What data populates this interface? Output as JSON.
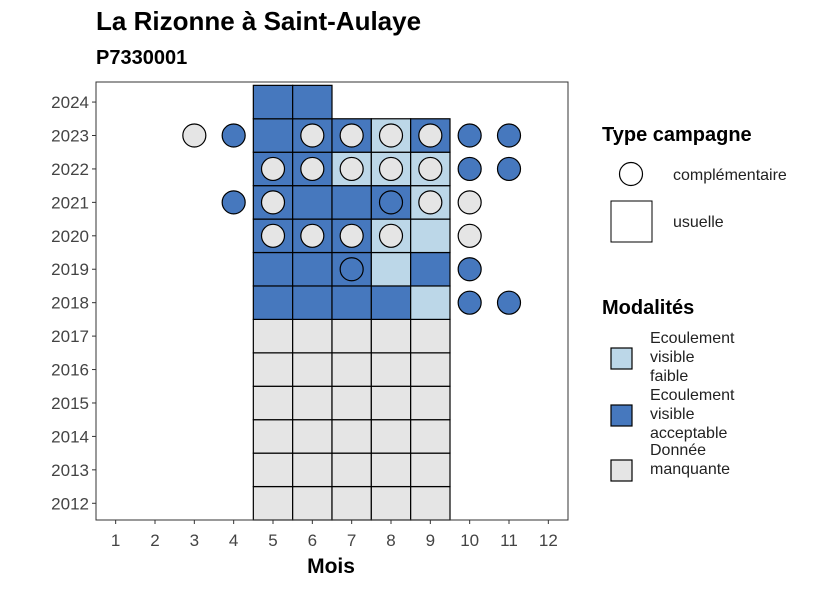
{
  "chart_data": {
    "type": "heatmap",
    "title": "La Rizonne à Saint-Aulaye",
    "subtitle": "P7330001",
    "xlabel": "Mois",
    "ylabel": "",
    "x_ticks": [
      1,
      2,
      3,
      4,
      5,
      6,
      7,
      8,
      9,
      10,
      11,
      12
    ],
    "y_ticks": [
      2012,
      2013,
      2014,
      2015,
      2016,
      2017,
      2018,
      2019,
      2020,
      2021,
      2022,
      2023,
      2024
    ],
    "xlim": [
      0.5,
      12.5
    ],
    "ylim": [
      2011.5,
      2024.6
    ],
    "grid": false,
    "colors": {
      "faible": "#bcd7e8",
      "acceptable": "#4678be",
      "manquante": "#e5e5e5"
    },
    "usuelle": [
      {
        "year": 2012,
        "month": 5,
        "m": "manquante"
      },
      {
        "year": 2012,
        "month": 6,
        "m": "manquante"
      },
      {
        "year": 2012,
        "month": 7,
        "m": "manquante"
      },
      {
        "year": 2012,
        "month": 8,
        "m": "manquante"
      },
      {
        "year": 2012,
        "month": 9,
        "m": "manquante"
      },
      {
        "year": 2013,
        "month": 5,
        "m": "manquante"
      },
      {
        "year": 2013,
        "month": 6,
        "m": "manquante"
      },
      {
        "year": 2013,
        "month": 7,
        "m": "manquante"
      },
      {
        "year": 2013,
        "month": 8,
        "m": "manquante"
      },
      {
        "year": 2013,
        "month": 9,
        "m": "manquante"
      },
      {
        "year": 2014,
        "month": 5,
        "m": "manquante"
      },
      {
        "year": 2014,
        "month": 6,
        "m": "manquante"
      },
      {
        "year": 2014,
        "month": 7,
        "m": "manquante"
      },
      {
        "year": 2014,
        "month": 8,
        "m": "manquante"
      },
      {
        "year": 2014,
        "month": 9,
        "m": "manquante"
      },
      {
        "year": 2015,
        "month": 5,
        "m": "manquante"
      },
      {
        "year": 2015,
        "month": 6,
        "m": "manquante"
      },
      {
        "year": 2015,
        "month": 7,
        "m": "manquante"
      },
      {
        "year": 2015,
        "month": 8,
        "m": "manquante"
      },
      {
        "year": 2015,
        "month": 9,
        "m": "manquante"
      },
      {
        "year": 2016,
        "month": 5,
        "m": "manquante"
      },
      {
        "year": 2016,
        "month": 6,
        "m": "manquante"
      },
      {
        "year": 2016,
        "month": 7,
        "m": "manquante"
      },
      {
        "year": 2016,
        "month": 8,
        "m": "manquante"
      },
      {
        "year": 2016,
        "month": 9,
        "m": "manquante"
      },
      {
        "year": 2017,
        "month": 5,
        "m": "manquante"
      },
      {
        "year": 2017,
        "month": 6,
        "m": "manquante"
      },
      {
        "year": 2017,
        "month": 7,
        "m": "manquante"
      },
      {
        "year": 2017,
        "month": 8,
        "m": "manquante"
      },
      {
        "year": 2017,
        "month": 9,
        "m": "manquante"
      },
      {
        "year": 2018,
        "month": 5,
        "m": "acceptable"
      },
      {
        "year": 2018,
        "month": 6,
        "m": "acceptable"
      },
      {
        "year": 2018,
        "month": 7,
        "m": "acceptable"
      },
      {
        "year": 2018,
        "month": 8,
        "m": "acceptable"
      },
      {
        "year": 2018,
        "month": 9,
        "m": "faible"
      },
      {
        "year": 2019,
        "month": 5,
        "m": "acceptable"
      },
      {
        "year": 2019,
        "month": 6,
        "m": "acceptable"
      },
      {
        "year": 2019,
        "month": 7,
        "m": "acceptable"
      },
      {
        "year": 2019,
        "month": 8,
        "m": "faible"
      },
      {
        "year": 2019,
        "month": 9,
        "m": "acceptable"
      },
      {
        "year": 2020,
        "month": 5,
        "m": "acceptable"
      },
      {
        "year": 2020,
        "month": 6,
        "m": "acceptable"
      },
      {
        "year": 2020,
        "month": 7,
        "m": "acceptable"
      },
      {
        "year": 2020,
        "month": 8,
        "m": "faible"
      },
      {
        "year": 2020,
        "month": 9,
        "m": "faible"
      },
      {
        "year": 2021,
        "month": 5,
        "m": "acceptable"
      },
      {
        "year": 2021,
        "month": 6,
        "m": "acceptable"
      },
      {
        "year": 2021,
        "month": 7,
        "m": "acceptable"
      },
      {
        "year": 2021,
        "month": 8,
        "m": "acceptable"
      },
      {
        "year": 2021,
        "month": 9,
        "m": "faible"
      },
      {
        "year": 2022,
        "month": 5,
        "m": "acceptable"
      },
      {
        "year": 2022,
        "month": 6,
        "m": "acceptable"
      },
      {
        "year": 2022,
        "month": 7,
        "m": "faible"
      },
      {
        "year": 2022,
        "month": 8,
        "m": "faible"
      },
      {
        "year": 2022,
        "month": 9,
        "m": "faible"
      },
      {
        "year": 2023,
        "month": 5,
        "m": "acceptable"
      },
      {
        "year": 2023,
        "month": 6,
        "m": "acceptable"
      },
      {
        "year": 2023,
        "month": 7,
        "m": "acceptable"
      },
      {
        "year": 2023,
        "month": 8,
        "m": "faible"
      },
      {
        "year": 2023,
        "month": 9,
        "m": "acceptable"
      },
      {
        "year": 2024,
        "month": 5,
        "m": "acceptable"
      },
      {
        "year": 2024,
        "month": 6,
        "m": "acceptable"
      }
    ],
    "complementaire": [
      {
        "year": 2018,
        "month": 10,
        "m": "acceptable"
      },
      {
        "year": 2018,
        "month": 11,
        "m": "acceptable"
      },
      {
        "year": 2019,
        "month": 7,
        "m": "acceptable"
      },
      {
        "year": 2019,
        "month": 10,
        "m": "acceptable"
      },
      {
        "year": 2020,
        "month": 5,
        "m": "manquante"
      },
      {
        "year": 2020,
        "month": 6,
        "m": "manquante"
      },
      {
        "year": 2020,
        "month": 7,
        "m": "manquante"
      },
      {
        "year": 2020,
        "month": 8,
        "m": "manquante"
      },
      {
        "year": 2020,
        "month": 10,
        "m": "manquante"
      },
      {
        "year": 2021,
        "month": 4,
        "m": "acceptable"
      },
      {
        "year": 2021,
        "month": 5,
        "m": "manquante"
      },
      {
        "year": 2021,
        "month": 8,
        "m": "acceptable"
      },
      {
        "year": 2021,
        "month": 9,
        "m": "manquante"
      },
      {
        "year": 2021,
        "month": 10,
        "m": "manquante"
      },
      {
        "year": 2022,
        "month": 5,
        "m": "manquante"
      },
      {
        "year": 2022,
        "month": 6,
        "m": "manquante"
      },
      {
        "year": 2022,
        "month": 7,
        "m": "manquante"
      },
      {
        "year": 2022,
        "month": 8,
        "m": "manquante"
      },
      {
        "year": 2022,
        "month": 9,
        "m": "manquante"
      },
      {
        "year": 2022,
        "month": 10,
        "m": "acceptable"
      },
      {
        "year": 2022,
        "month": 11,
        "m": "acceptable"
      },
      {
        "year": 2023,
        "month": 3,
        "m": "manquante"
      },
      {
        "year": 2023,
        "month": 4,
        "m": "acceptable"
      },
      {
        "year": 2023,
        "month": 6,
        "m": "manquante"
      },
      {
        "year": 2023,
        "month": 7,
        "m": "manquante"
      },
      {
        "year": 2023,
        "month": 8,
        "m": "manquante"
      },
      {
        "year": 2023,
        "month": 9,
        "m": "manquante"
      },
      {
        "year": 2023,
        "month": 10,
        "m": "acceptable"
      },
      {
        "year": 2023,
        "month": 11,
        "m": "acceptable"
      }
    ],
    "legend": {
      "type_title": "Type campagne",
      "type_items": [
        "complémentaire",
        "usuelle"
      ],
      "mod_title": "Modalités",
      "mod_items": [
        {
          "key": "faible",
          "lines": [
            "Ecoulement",
            "visible",
            "faible"
          ]
        },
        {
          "key": "acceptable",
          "lines": [
            "Ecoulement",
            "visible",
            "acceptable"
          ]
        },
        {
          "key": "manquante",
          "lines": [
            "Donnée",
            "manquante"
          ]
        }
      ],
      "placement": "right"
    }
  }
}
